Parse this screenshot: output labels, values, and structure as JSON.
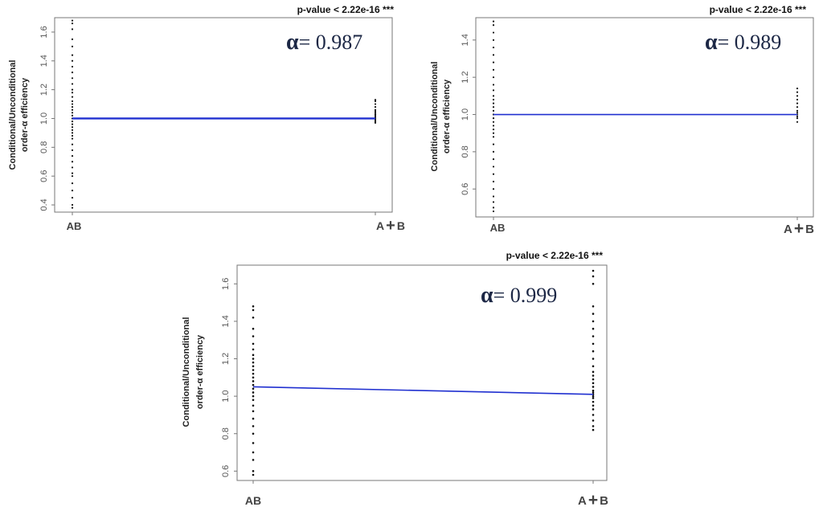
{
  "chart_data": [
    {
      "type": "scatter",
      "pvalue_text": "p-value < 2.22e-16 ***",
      "alpha_symbol": "α",
      "alpha_text": "= 0.987",
      "ylabel_line1": "Conditional/Unconditional",
      "ylabel_line2": "order-α efficiency",
      "categories": [
        "AB",
        "A + B"
      ],
      "category_labels": [
        "AB",
        "A",
        "+",
        "B"
      ],
      "ylim": [
        0.35,
        1.7
      ],
      "yticks": [
        0.4,
        0.6,
        0.8,
        1.0,
        1.2,
        1.4,
        1.6
      ],
      "ytick_labels": [
        "0.4",
        "0.6",
        "0.8",
        "1.0",
        "1.2",
        "1.4",
        "1.6"
      ],
      "trend_line": {
        "color": "#2030d0",
        "values": [
          1.0,
          1.0
        ]
      },
      "points": [
        {
          "category": "AB",
          "values": [
            0.38,
            0.4,
            0.45,
            0.5,
            0.55,
            0.6,
            0.62,
            0.66,
            0.7,
            0.74,
            0.78,
            0.82,
            0.86,
            0.88,
            0.9,
            0.92,
            0.94,
            0.96,
            0.98,
            1.0,
            1.02,
            1.04,
            1.06,
            1.08,
            1.1,
            1.12,
            1.15,
            1.18,
            1.2,
            1.24,
            1.28,
            1.32,
            1.36,
            1.4,
            1.44,
            1.5,
            1.55,
            1.62,
            1.66,
            1.68
          ]
        },
        {
          "category": "A + B",
          "values": [
            0.97,
            0.98,
            0.99,
            1.0,
            1.01,
            1.02,
            1.03,
            1.04,
            1.05,
            1.06,
            1.08,
            1.1,
            1.12,
            1.13
          ]
        }
      ]
    },
    {
      "type": "scatter",
      "pvalue_text": "p-value < 2.22e-16 ***",
      "alpha_symbol": "α",
      "alpha_text": "= 0.989",
      "ylabel_line1": "Conditional/Unconditional",
      "ylabel_line2": "order-α efficiency",
      "categories": [
        "AB",
        "A + B"
      ],
      "category_labels": [
        "AB",
        "A",
        "+",
        "B"
      ],
      "ylim": [
        0.45,
        1.52
      ],
      "yticks": [
        0.6,
        0.8,
        1.0,
        1.2,
        1.4
      ],
      "ytick_labels": [
        "0.6",
        "0.8",
        "1.0",
        "1.2",
        "1.4"
      ],
      "trend_line": {
        "color": "#2030d0",
        "values": [
          1.0,
          1.0
        ]
      },
      "points": [
        {
          "category": "AB",
          "values": [
            0.48,
            0.5,
            0.53,
            0.56,
            0.6,
            0.64,
            0.68,
            0.72,
            0.76,
            0.8,
            0.84,
            0.88,
            0.9,
            0.92,
            0.94,
            0.96,
            0.98,
            1.0,
            1.02,
            1.04,
            1.06,
            1.08,
            1.1,
            1.13,
            1.16,
            1.2,
            1.24,
            1.28,
            1.32,
            1.36,
            1.4,
            1.44,
            1.48,
            1.5
          ]
        },
        {
          "category": "A + B",
          "values": [
            0.96,
            0.98,
            0.99,
            1.0,
            1.01,
            1.02,
            1.04,
            1.06,
            1.08,
            1.1,
            1.12,
            1.14
          ]
        }
      ]
    },
    {
      "type": "scatter",
      "pvalue_text": "p-value < 2.22e-16 ***",
      "alpha_symbol": "α",
      "alpha_text": "= 0.999",
      "ylabel_line1": "Conditional/Unconditional",
      "ylabel_line2": "order-α efficiency",
      "categories": [
        "AB",
        "A + B"
      ],
      "category_labels": [
        "AB",
        "A",
        "+",
        "B"
      ],
      "ylim": [
        0.55,
        1.7
      ],
      "yticks": [
        0.6,
        0.8,
        1.0,
        1.2,
        1.4,
        1.6
      ],
      "ytick_labels": [
        "0.6",
        "0.8",
        "1.0",
        "1.2",
        "1.4",
        "1.6"
      ],
      "trend_line": {
        "color": "#2030d0",
        "values": [
          1.05,
          1.01
        ]
      },
      "points": [
        {
          "category": "AB",
          "values": [
            0.58,
            0.6,
            0.66,
            0.7,
            0.75,
            0.8,
            0.84,
            0.88,
            0.92,
            0.95,
            0.98,
            1.0,
            1.02,
            1.04,
            1.06,
            1.08,
            1.1,
            1.12,
            1.14,
            1.16,
            1.18,
            1.2,
            1.22,
            1.25,
            1.28,
            1.32,
            1.36,
            1.42,
            1.46,
            1.48
          ]
        },
        {
          "category": "A + B",
          "values": [
            0.82,
            0.84,
            0.87,
            0.9,
            0.93,
            0.95,
            0.97,
            0.99,
            1.0,
            1.01,
            1.02,
            1.03,
            1.05,
            1.07,
            1.09,
            1.11,
            1.13,
            1.16,
            1.2,
            1.24,
            1.28,
            1.32,
            1.36,
            1.4,
            1.44,
            1.48,
            1.6,
            1.64,
            1.67
          ]
        }
      ]
    }
  ]
}
